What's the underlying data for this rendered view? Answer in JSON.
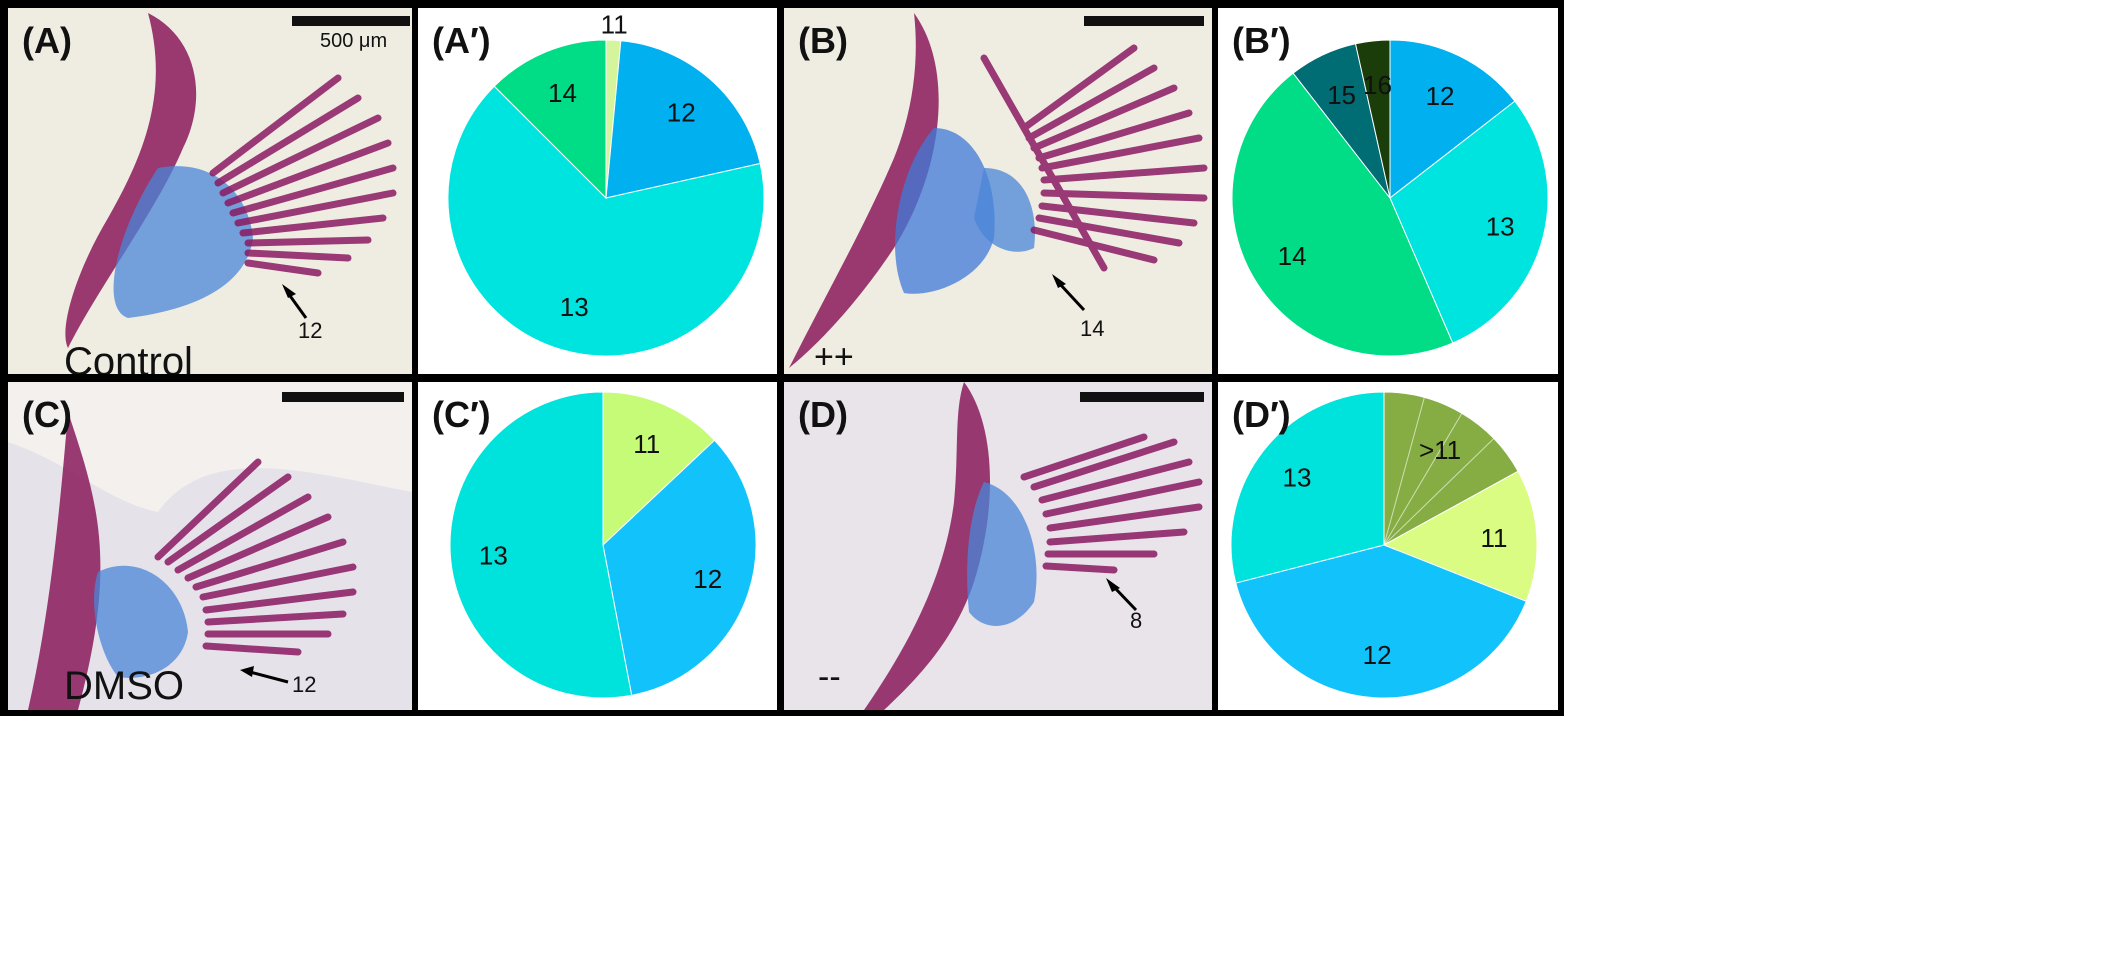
{
  "panels": {
    "A": {
      "label": "(A)",
      "caption": "Control",
      "arrow_label": "12",
      "scale_label": "500 μm"
    },
    "B": {
      "label": "(B)",
      "caption": "++",
      "arrow_label": "14"
    },
    "C": {
      "label": "(C)",
      "caption": "DMSO",
      "arrow_label": "12"
    },
    "D": {
      "label": "(D)",
      "caption": "--",
      "arrow_label": "8"
    }
  },
  "chart_data": [
    {
      "panel": "(A′)",
      "type": "pie",
      "title": "",
      "slices": [
        {
          "label": "11",
          "value": 1.5,
          "color": "#d4f59c"
        },
        {
          "label": "12",
          "value": 20,
          "color": "#00b0ef"
        },
        {
          "label": "13",
          "value": 66,
          "color": "#00e4e0"
        },
        {
          "label": "14",
          "value": 12.5,
          "color": "#00dd86"
        }
      ]
    },
    {
      "panel": "(B′)",
      "type": "pie",
      "title": "",
      "slices": [
        {
          "label": "12",
          "value": 14.5,
          "color": "#00b0ef"
        },
        {
          "label": "13",
          "value": 29,
          "color": "#00e4e0"
        },
        {
          "label": "14",
          "value": 46,
          "color": "#00dd86"
        },
        {
          "label": "15",
          "value": 7,
          "color": "#006d75"
        },
        {
          "label": "16",
          "value": 3.5,
          "color": "#1a3d0a"
        }
      ]
    },
    {
      "panel": "(C′)",
      "type": "pie",
      "title": "",
      "slices": [
        {
          "label": "11",
          "value": 13,
          "color": "#c6fb78"
        },
        {
          "label": "12",
          "value": 34,
          "color": "#12c2fb"
        },
        {
          "label": "13",
          "value": 53,
          "color": "#00e2dc"
        }
      ]
    },
    {
      "panel": "(D′)",
      "type": "pie",
      "title": "",
      "slices": [
        {
          "label": ">11",
          "value": 17,
          "color": "#86ad44",
          "dividers": 3
        },
        {
          "label": "11",
          "value": 14,
          "color": "#dafc82"
        },
        {
          "label": "12",
          "value": 40,
          "color": "#12c2fb"
        },
        {
          "label": "13",
          "value": 29,
          "color": "#00e2dc"
        }
      ]
    }
  ]
}
